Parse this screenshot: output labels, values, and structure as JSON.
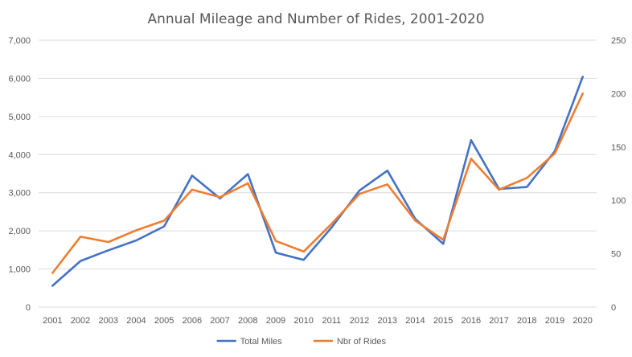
{
  "chart_data": {
    "type": "line",
    "title": "Annual Mileage and Number of Rides, 2001-2020",
    "xlabel": "",
    "ylabel": "",
    "x": [
      "2001",
      "2002",
      "2003",
      "2004",
      "2005",
      "2006",
      "2007",
      "2008",
      "2009",
      "2010",
      "2011",
      "2012",
      "2013",
      "2014",
      "2015",
      "2016",
      "2017",
      "2018",
      "2019",
      "2020"
    ],
    "y_left_ticks": [
      "0",
      "1,000",
      "2,000",
      "3,000",
      "4,000",
      "5,000",
      "6,000",
      "7,000"
    ],
    "y_right_ticks": [
      "0",
      "50",
      "100",
      "150",
      "200",
      "250"
    ],
    "ylim_left": [
      0,
      7000
    ],
    "ylim_right": [
      0,
      250
    ],
    "grid": true,
    "legend_position": "bottom",
    "series": [
      {
        "name": "Total Miles",
        "axis": "left",
        "color": "#4472c4",
        "values": [
          560,
          1210,
          1490,
          1750,
          2120,
          3450,
          2850,
          3490,
          1430,
          1240,
          2090,
          3060,
          3580,
          2310,
          1660,
          4380,
          3100,
          3150,
          4090,
          6040
        ]
      },
      {
        "name": "Nbr of Rides",
        "axis": "right",
        "color": "#ed7d31",
        "values": [
          32,
          66,
          61,
          72,
          81,
          110,
          103,
          116,
          62,
          52,
          78,
          106,
          115,
          81,
          63,
          139,
          110,
          121,
          144,
          200
        ]
      }
    ]
  }
}
